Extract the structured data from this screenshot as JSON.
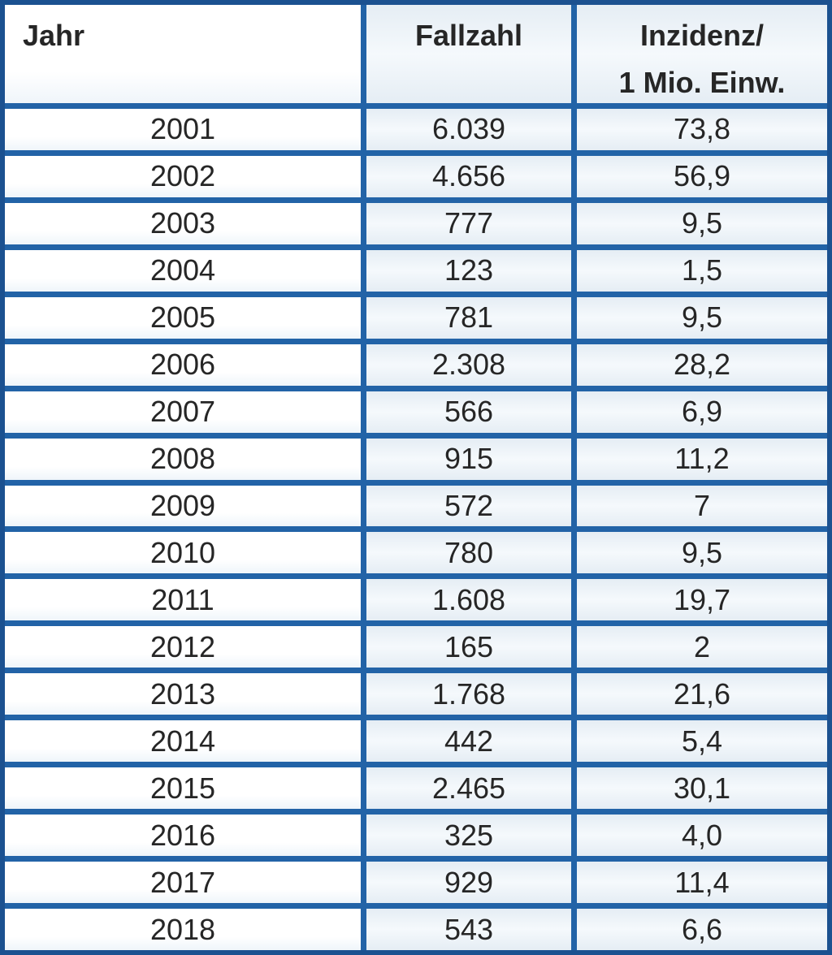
{
  "header": {
    "col1": "Jahr",
    "col2": "Fallzahl",
    "col3_line1": "Inzidenz/",
    "col3_line2": "1 Mio. Einw."
  },
  "chart_data": {
    "type": "table",
    "columns": [
      "Jahr",
      "Fallzahl",
      "Inzidenz/ 1 Mio. Einw."
    ],
    "rows": [
      {
        "jahr": "2001",
        "fallzahl": "6.039",
        "inzidenz": "73,8"
      },
      {
        "jahr": "2002",
        "fallzahl": "4.656",
        "inzidenz": "56,9"
      },
      {
        "jahr": "2003",
        "fallzahl": "777",
        "inzidenz": "9,5"
      },
      {
        "jahr": "2004",
        "fallzahl": "123",
        "inzidenz": "1,5"
      },
      {
        "jahr": "2005",
        "fallzahl": "781",
        "inzidenz": "9,5"
      },
      {
        "jahr": "2006",
        "fallzahl": "2.308",
        "inzidenz": "28,2"
      },
      {
        "jahr": "2007",
        "fallzahl": "566",
        "inzidenz": "6,9"
      },
      {
        "jahr": "2008",
        "fallzahl": "915",
        "inzidenz": "11,2"
      },
      {
        "jahr": "2009",
        "fallzahl": "572",
        "inzidenz": "7"
      },
      {
        "jahr": "2010",
        "fallzahl": "780",
        "inzidenz": "9,5"
      },
      {
        "jahr": "2011",
        "fallzahl": "1.608",
        "inzidenz": "19,7"
      },
      {
        "jahr": "2012",
        "fallzahl": "165",
        "inzidenz": "2"
      },
      {
        "jahr": "2013",
        "fallzahl": "1.768",
        "inzidenz": "21,6"
      },
      {
        "jahr": "2014",
        "fallzahl": "442",
        "inzidenz": "5,4"
      },
      {
        "jahr": "2015",
        "fallzahl": "2.465",
        "inzidenz": "30,1"
      },
      {
        "jahr": "2016",
        "fallzahl": "325",
        "inzidenz": "4,0"
      },
      {
        "jahr": "2017",
        "fallzahl": "929",
        "inzidenz": "11,4"
      },
      {
        "jahr": "2018",
        "fallzahl": "543",
        "inzidenz": "6,6"
      }
    ]
  },
  "colors": {
    "border_outer": "#1b5190",
    "border_inner": "#2263a7",
    "fill_year_column": "#ffffff",
    "fill_value_columns": "#e9eff6",
    "text": "#262626"
  }
}
